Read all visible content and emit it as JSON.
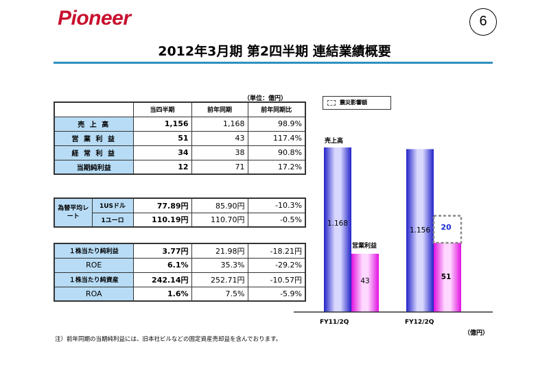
{
  "header": {
    "logo": "Pioneer",
    "page_number": "6",
    "title": "2012年3月期 第2四半期 連結業績概要"
  },
  "unit_label": "（単位：億円）",
  "results_table": {
    "columns": [
      "当四半期",
      "前年同期",
      "前年同期比"
    ],
    "rows": [
      {
        "label": "売 上 高",
        "current": "1,156",
        "prior": "1,168",
        "ratio": "98.9%"
      },
      {
        "label": "営 業 利 益",
        "current": "51",
        "prior": "43",
        "ratio": "117.4%"
      },
      {
        "label": "経 常 利 益",
        "current": "34",
        "prior": "38",
        "ratio": "90.8%"
      },
      {
        "label": "当期純利益",
        "current": "12",
        "prior": "71",
        "ratio": "17.2%"
      }
    ]
  },
  "fx_table": {
    "label": "為替平均レート",
    "rows": [
      {
        "sub": "1USドル",
        "current": "77.89円",
        "prior": "85.90円",
        "ratio": "-10.3%"
      },
      {
        "sub": "1ユーロ",
        "current": "110.19円",
        "prior": "110.70円",
        "ratio": "-0.5%"
      }
    ]
  },
  "per_share_table": {
    "rows": [
      {
        "label": "１株当たり純利益",
        "current": "3.77円",
        "prior": "21.98円",
        "ratio": "-18.21円"
      },
      {
        "label": "ROE",
        "current": "6.1%",
        "prior": "35.3%",
        "ratio": "-29.2%"
      },
      {
        "label": "１株当たり純資産",
        "current": "242.14円",
        "prior": "252.71円",
        "ratio": "-10.57円"
      },
      {
        "label": "ROA",
        "current": "1.6%",
        "prior": "7.5%",
        "ratio": "-5.9%"
      }
    ]
  },
  "note": "注）前年同期の当期純利益には、旧本社ビルなどの固定資産売却益を含んでおります。",
  "chart_data": {
    "type": "bar",
    "categories": [
      "FY11/2Q",
      "FY12/2Q"
    ],
    "series": [
      {
        "name": "売上高",
        "values": [
          1168,
          1156
        ],
        "labels": [
          "1.168",
          "1.156"
        ]
      },
      {
        "name": "営業利益",
        "values": [
          43,
          51
        ],
        "labels": [
          "43",
          "51"
        ]
      },
      {
        "name": "震災影響額",
        "values": [
          null,
          20
        ],
        "labels": [
          "",
          "20"
        ]
      }
    ],
    "legend": "震災影響額",
    "unit": "（億円）",
    "colors": {
      "sales": "#3a3ad8",
      "op_income": "#e040e0"
    }
  }
}
